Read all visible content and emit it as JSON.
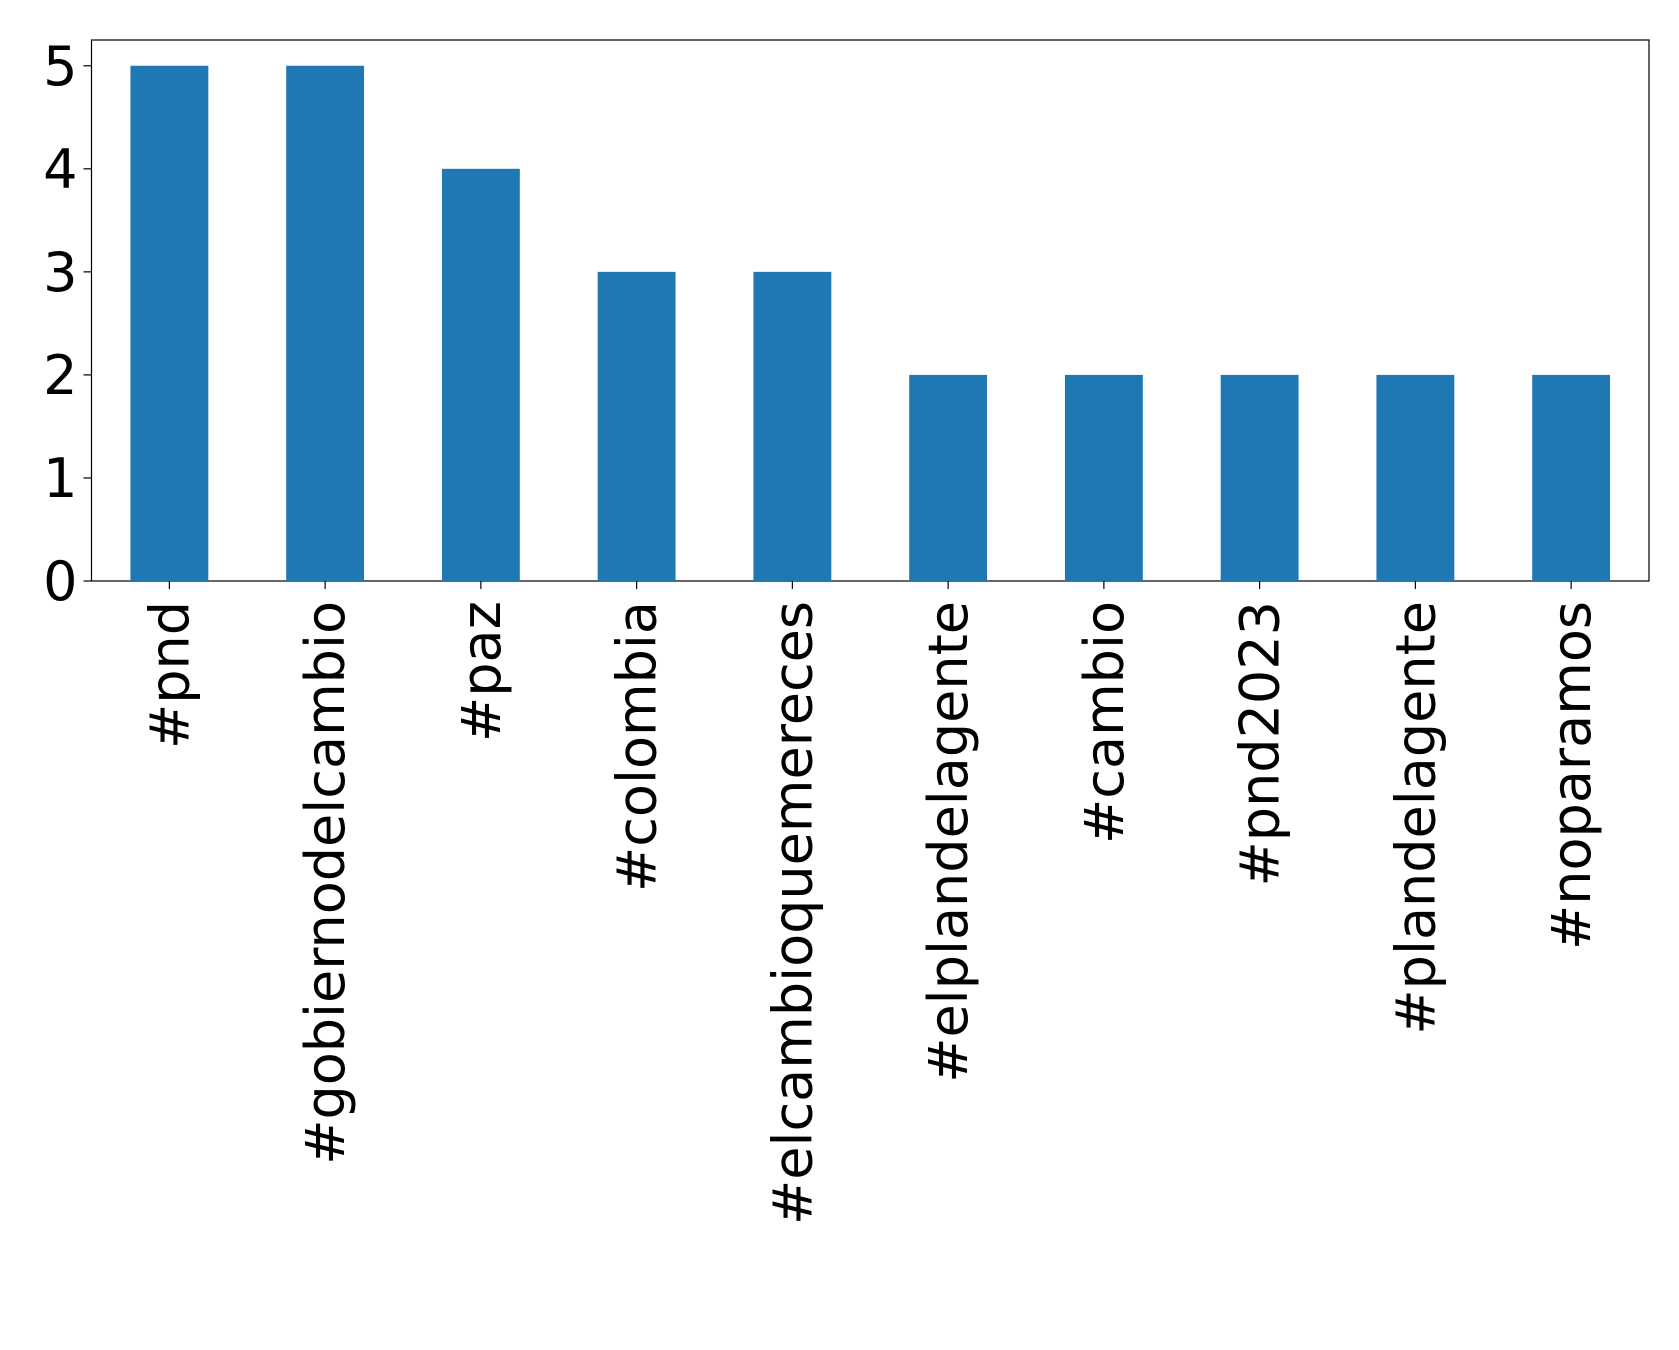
{
  "chart_data": {
    "type": "bar",
    "categories": [
      "#pnd",
      "#gobiernodelcambio",
      "#paz",
      "#colombia",
      "#elcambioquemereces",
      "#elplandelagente",
      "#cambio",
      "#pnd2023",
      "#plandelagente",
      "#noparamos"
    ],
    "values": [
      5,
      5,
      4,
      3,
      3,
      2,
      2,
      2,
      2,
      2
    ],
    "color": "#1f77b4",
    "ylim": [
      0,
      5.25
    ],
    "yticks": [
      0,
      1,
      2,
      3,
      4,
      5
    ],
    "grid": false
  }
}
